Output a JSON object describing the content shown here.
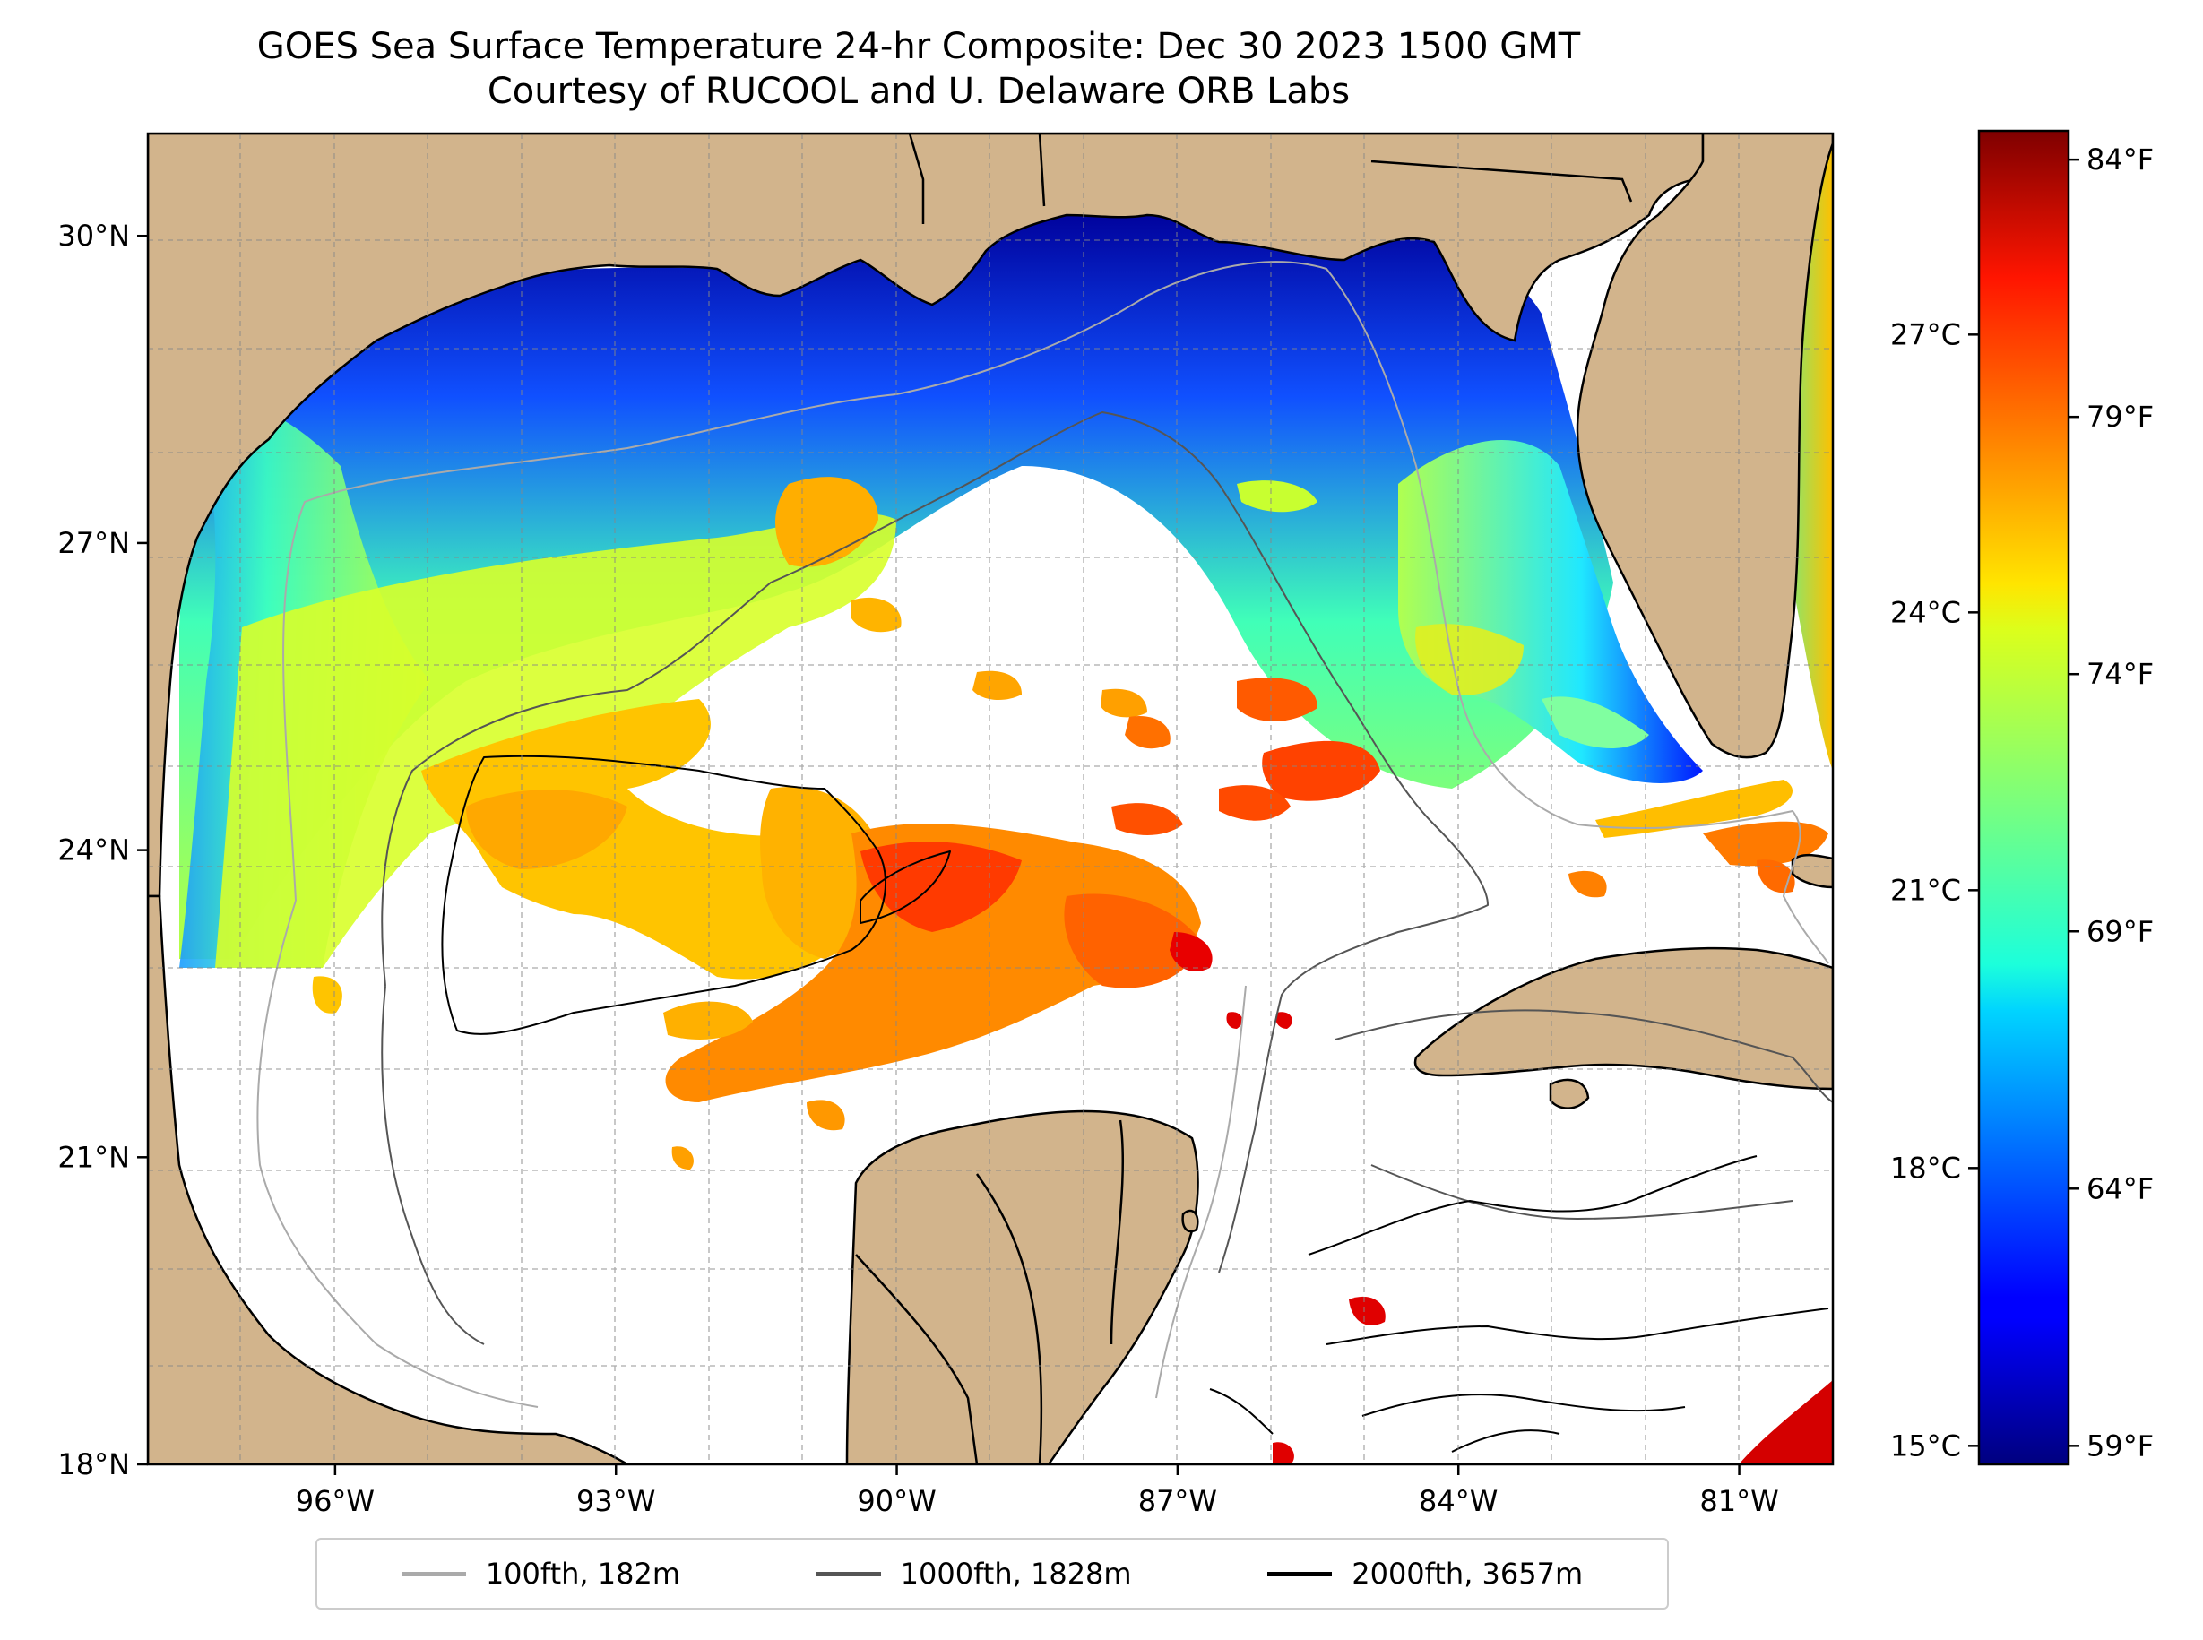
{
  "title": {
    "line1": "GOES Sea Surface Temperature 24-hr Composite: Dec 30 2023 1500 GMT",
    "line2": "Courtesy of RUCOOL and U. Delaware ORB Labs"
  },
  "map": {
    "lon_range": [
      -98.0,
      -80.0
    ],
    "lat_range": [
      18.0,
      31.0
    ],
    "lat_ticks": [
      {
        "value": 30,
        "label": "30°N"
      },
      {
        "value": 27,
        "label": "27°N"
      },
      {
        "value": 24,
        "label": "24°N"
      },
      {
        "value": 21,
        "label": "21°N"
      },
      {
        "value": 18,
        "label": "18°N"
      }
    ],
    "lon_ticks": [
      {
        "value": -96,
        "label": "96°W"
      },
      {
        "value": -93,
        "label": "93°W"
      },
      {
        "value": -90,
        "label": "90°W"
      },
      {
        "value": -87,
        "label": "87°W"
      },
      {
        "value": -84,
        "label": "84°W"
      },
      {
        "value": -81,
        "label": "81°W"
      }
    ],
    "gridlines": true,
    "land_color": "#d2b48c",
    "no_data_color": "#ffffff"
  },
  "colorbar": {
    "colormap": "jet",
    "celsius_range": [
      14.8,
      29.2
    ],
    "celsius_ticks": [
      {
        "value": 15,
        "label": "15°C"
      },
      {
        "value": 18,
        "label": "18°C"
      },
      {
        "value": 21,
        "label": "21°C"
      },
      {
        "value": 24,
        "label": "24°C"
      },
      {
        "value": 27,
        "label": "27°C"
      }
    ],
    "fahrenheit_ticks": [
      {
        "value": 59,
        "label": "59°F"
      },
      {
        "value": 64,
        "label": "64°F"
      },
      {
        "value": 69,
        "label": "69°F"
      },
      {
        "value": 74,
        "label": "74°F"
      },
      {
        "value": 79,
        "label": "79°F"
      },
      {
        "value": 84,
        "label": "84°F"
      }
    ]
  },
  "legend": {
    "placement": "bottom-center",
    "items": [
      {
        "label": "100fth, 182m",
        "color": "#aaaaaa"
      },
      {
        "label": "1000fth, 1828m",
        "color": "#555555"
      },
      {
        "label": "2000fth, 3657m",
        "color": "#000000"
      }
    ]
  }
}
